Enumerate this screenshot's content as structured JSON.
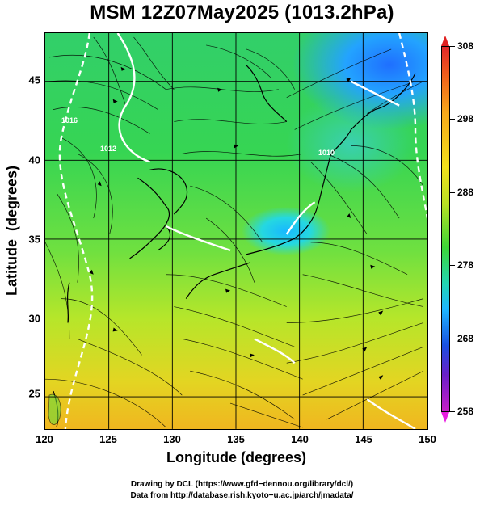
{
  "title": "MSM 12Z07May2025 (1013.2hPa)",
  "x_axis": {
    "label": "Longitude (degrees)",
    "ticks": [
      "120",
      "125",
      "130",
      "135",
      "140",
      "145",
      "150"
    ],
    "range": [
      120,
      150
    ]
  },
  "y_axis": {
    "label": "Latitude  (degrees)",
    "ticks": [
      "45",
      "40",
      "35",
      "30",
      "25"
    ],
    "range": [
      22.4,
      47.6
    ]
  },
  "colorbar": {
    "labels": [
      "308",
      "298",
      "288",
      "278",
      "268",
      "258"
    ],
    "range": [
      258,
      308
    ],
    "colors": [
      "#e0282a",
      "#f7a81c",
      "#f2e01c",
      "#3ed536",
      "#23d6b4",
      "#1fb6ff",
      "#1a4fe0",
      "#c81ec8"
    ]
  },
  "contour_labels": [
    "1016",
    "1012",
    "1010"
  ],
  "credits": [
    "Drawing by DCL (https://www.gfd−dennou.org/library/dcl/)",
    "Data from http://database.rish.kyoto−u.ac.jp/arch/jmadata/"
  ]
}
